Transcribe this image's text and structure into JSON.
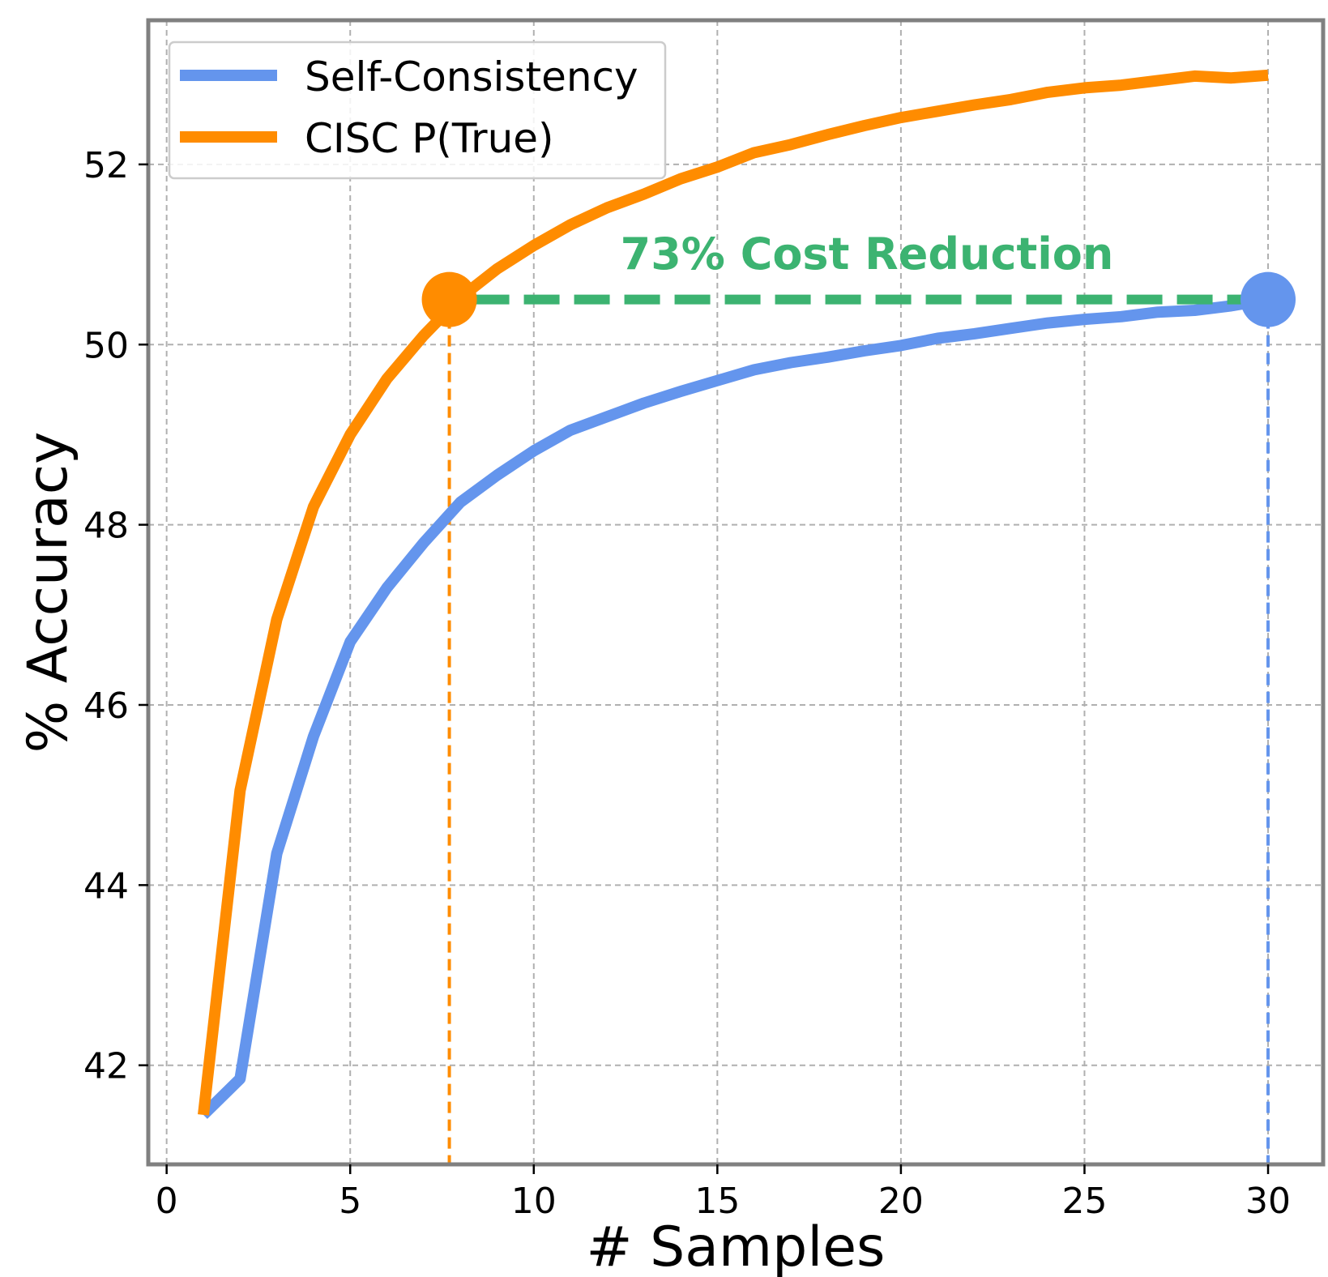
{
  "chart_data": {
    "type": "line",
    "title": "",
    "xlabel": "# Samples",
    "ylabel": "% Accuracy",
    "xlim": [
      -0.5,
      31.5
    ],
    "ylim": [
      40.9,
      53.6
    ],
    "xticks": [
      0,
      5,
      10,
      15,
      20,
      25,
      30
    ],
    "yticks": [
      42,
      44,
      46,
      48,
      50,
      52
    ],
    "grid": true,
    "legend_position": "top-left",
    "series": [
      {
        "name": "Self-Consistency",
        "color": "#6495ED",
        "x": [
          1,
          2,
          3,
          4,
          5,
          6,
          7,
          8,
          9,
          10,
          11,
          12,
          13,
          14,
          15,
          16,
          17,
          18,
          19,
          20,
          21,
          22,
          23,
          24,
          25,
          26,
          27,
          28,
          29,
          30
        ],
        "y": [
          41.45,
          41.85,
          44.35,
          45.65,
          46.7,
          47.3,
          47.8,
          48.25,
          48.55,
          48.82,
          49.05,
          49.2,
          49.35,
          49.48,
          49.6,
          49.72,
          49.8,
          49.86,
          49.93,
          49.99,
          50.07,
          50.12,
          50.18,
          50.24,
          50.28,
          50.31,
          50.36,
          50.38,
          50.43,
          50.5
        ]
      },
      {
        "name": "CISC P(True)",
        "color": "#FF8C00",
        "x": [
          1,
          2,
          3,
          4,
          5,
          6,
          7,
          8,
          9,
          10,
          11,
          12,
          13,
          14,
          15,
          16,
          17,
          18,
          19,
          20,
          21,
          22,
          23,
          24,
          25,
          26,
          27,
          28,
          29,
          30
        ],
        "y": [
          41.45,
          45.05,
          46.95,
          48.2,
          49.0,
          49.62,
          50.1,
          50.52,
          50.84,
          51.1,
          51.33,
          51.52,
          51.67,
          51.84,
          51.97,
          52.13,
          52.22,
          52.33,
          52.43,
          52.52,
          52.59,
          52.66,
          52.72,
          52.8,
          52.85,
          52.88,
          52.93,
          52.98,
          52.96,
          52.99
        ]
      }
    ],
    "annotations": {
      "text": "73% Cost Reduction",
      "text_color": "#3CB371",
      "cisc_point": {
        "x": 7.7,
        "y": 50.5,
        "color": "#FF8C00"
      },
      "sc_point": {
        "x": 30,
        "y": 50.5,
        "color": "#6495ED"
      },
      "hline_y": 50.5
    }
  }
}
